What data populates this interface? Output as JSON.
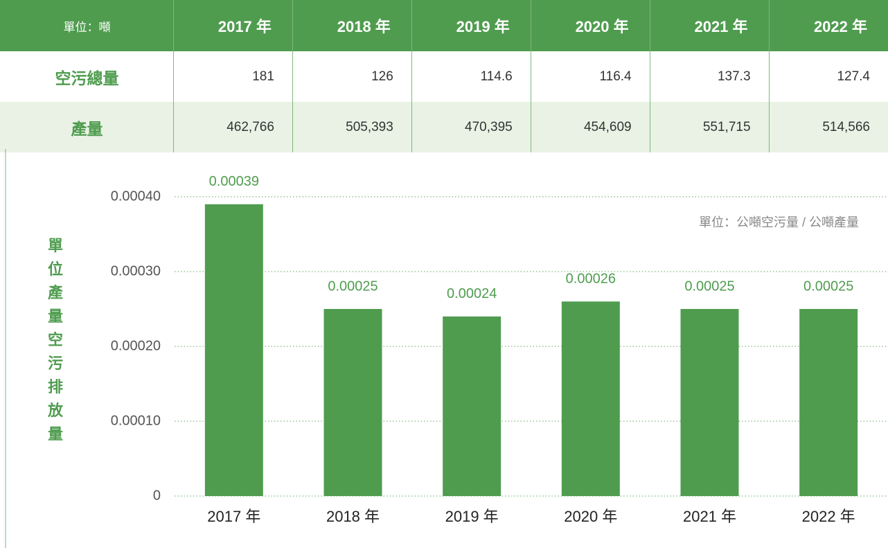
{
  "table": {
    "header": [
      "單位：噸",
      "2017 年",
      "2018 年",
      "2019 年",
      "2020 年",
      "2021 年",
      "2022 年"
    ],
    "rows": [
      [
        "空污總量",
        "181",
        "126",
        "114.6",
        "116.4",
        "137.3",
        "127.4"
      ],
      [
        "產量",
        "462,766",
        "505,393",
        "470,395",
        "454,609",
        "551,715",
        "514,566"
      ]
    ]
  },
  "chart_data": {
    "type": "bar",
    "y_label": "單位產量空污排放量",
    "annotation": "單位：公噸空污量 / 公噸產量",
    "categories": [
      "2017 年",
      "2018 年",
      "2019 年",
      "2020 年",
      "2021 年",
      "2022 年"
    ],
    "values": [
      0.00039,
      0.00025,
      0.00024,
      0.00026,
      0.00025,
      0.00025
    ],
    "color": "#4f9c4f",
    "ylim": [
      0,
      0.0004
    ],
    "yticks": [
      0,
      {
        "value": 0.0001,
        "label": "0.00010"
      },
      {
        "value": 0.0002,
        "label": "0.00020"
      },
      {
        "value": 0.0003,
        "label": "0.00030"
      },
      {
        "value": 0.0004,
        "label": "0.00040"
      }
    ],
    "grid": true
  }
}
